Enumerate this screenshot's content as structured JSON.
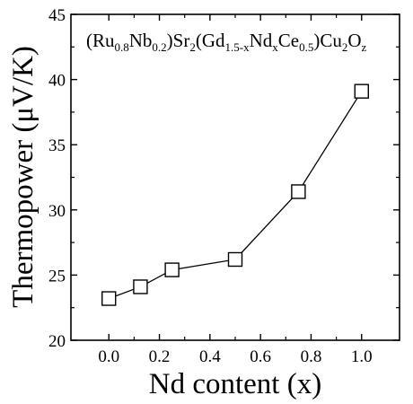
{
  "chart_data": {
    "type": "scatter",
    "xlabel": "Nd content (x)",
    "ylabel": "Thermopower (μV/K)",
    "xlim": [
      -0.15,
      1.15
    ],
    "ylim": [
      20,
      45
    ],
    "xticks": [
      "0.0",
      "0.2",
      "0.4",
      "0.6",
      "0.8",
      "1.0"
    ],
    "yticks": [
      "20",
      "25",
      "30",
      "35",
      "40",
      "45"
    ],
    "grid": false,
    "marker": "open-square",
    "connected": true,
    "annotation": {
      "runs": [
        {
          "t": "(Ru",
          "sub": false
        },
        {
          "t": "0.8",
          "sub": true
        },
        {
          "t": "Nb",
          "sub": false
        },
        {
          "t": "0.2",
          "sub": true
        },
        {
          "t": ")Sr",
          "sub": false
        },
        {
          "t": "2",
          "sub": true
        },
        {
          "t": "(Gd",
          "sub": false
        },
        {
          "t": "1.5-x",
          "sub": true
        },
        {
          "t": "Nd",
          "sub": false
        },
        {
          "t": "x",
          "sub": true
        },
        {
          "t": "Ce",
          "sub": false
        },
        {
          "t": "0.5",
          "sub": true
        },
        {
          "t": ")Cu",
          "sub": false
        },
        {
          "t": "2",
          "sub": true
        },
        {
          "t": "O",
          "sub": false
        },
        {
          "t": "z",
          "sub": true
        }
      ]
    },
    "series": [
      {
        "x": [
          0.0,
          0.125,
          0.25,
          0.5,
          0.75,
          1.0
        ],
        "y": [
          23.2,
          24.1,
          25.4,
          26.2,
          31.4,
          39.1
        ]
      }
    ]
  }
}
